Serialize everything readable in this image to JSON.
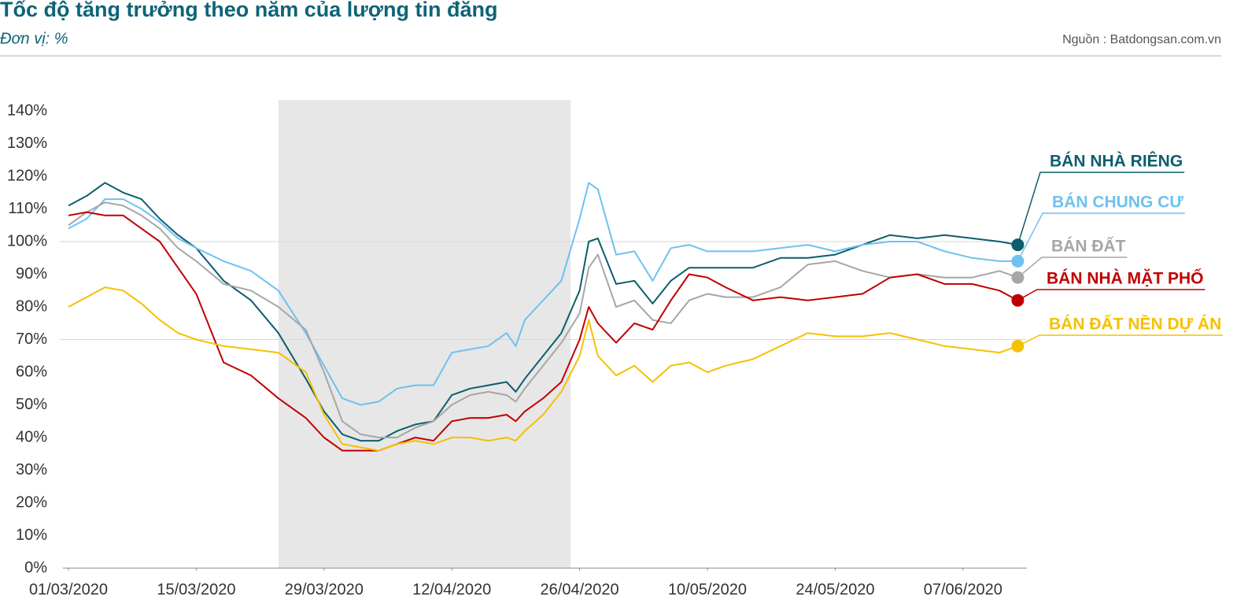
{
  "chart_data": {
    "type": "line",
    "title": "Tốc độ tăng trưởng theo năm của lượng tin đăng",
    "subtitle": "Đơn vị: %",
    "source": "Nguồn : Batdongsan.com.vn",
    "x": [
      "2020-03-01",
      "2020-03-03",
      "2020-03-05",
      "2020-03-07",
      "2020-03-09",
      "2020-03-11",
      "2020-03-13",
      "2020-03-15",
      "2020-03-18",
      "2020-03-21",
      "2020-03-24",
      "2020-03-27",
      "2020-03-29",
      "2020-03-31",
      "2020-04-02",
      "2020-04-04",
      "2020-04-06",
      "2020-04-08",
      "2020-04-10",
      "2020-04-12",
      "2020-04-14",
      "2020-04-16",
      "2020-04-18",
      "2020-04-19",
      "2020-04-20",
      "2020-04-22",
      "2020-04-24",
      "2020-04-26",
      "2020-04-27",
      "2020-04-28",
      "2020-04-30",
      "2020-05-02",
      "2020-05-04",
      "2020-05-06",
      "2020-05-08",
      "2020-05-10",
      "2020-05-12",
      "2020-05-15",
      "2020-05-18",
      "2020-05-21",
      "2020-05-24",
      "2020-05-27",
      "2020-05-30",
      "2020-06-02",
      "2020-06-05",
      "2020-06-08",
      "2020-06-11",
      "2020-06-13"
    ],
    "series": [
      {
        "name": "BÁN NHÀ RIÊNG",
        "color": "#0b5e6e",
        "values": [
          111,
          114,
          118,
          115,
          113,
          107,
          102,
          98,
          88,
          82,
          72,
          58,
          48,
          41,
          39,
          39,
          42,
          44,
          45,
          53,
          55,
          56,
          57,
          54,
          58,
          65,
          72,
          85,
          100,
          101,
          87,
          88,
          81,
          88,
          92,
          92,
          92,
          92,
          95,
          95,
          96,
          99,
          102,
          101,
          102,
          101,
          100,
          99
        ]
      },
      {
        "name": "BÁN CHUNG CƯ",
        "color": "#6ec1f0",
        "values": [
          104,
          107,
          113,
          113,
          110,
          106,
          101,
          98,
          94,
          91,
          85,
          72,
          62,
          52,
          50,
          51,
          55,
          56,
          56,
          66,
          67,
          68,
          72,
          68,
          76,
          82,
          88,
          107,
          118,
          116,
          96,
          97,
          88,
          98,
          99,
          97,
          97,
          97,
          98,
          99,
          97,
          99,
          100,
          100,
          97,
          95,
          94,
          94
        ]
      },
      {
        "name": "BÁN ĐẤT",
        "color": "#a6a6a6",
        "values": [
          105,
          109,
          112,
          111,
          108,
          104,
          98,
          94,
          87,
          85,
          80,
          73,
          60,
          45,
          41,
          40,
          40,
          43,
          45,
          50,
          53,
          54,
          53,
          51,
          55,
          62,
          69,
          78,
          92,
          96,
          80,
          82,
          76,
          75,
          82,
          84,
          83,
          83,
          86,
          93,
          94,
          91,
          89,
          90,
          89,
          89,
          91,
          89
        ]
      },
      {
        "name": "BÁN NHÀ MẶT PHỐ",
        "color": "#c00000",
        "values": [
          108,
          109,
          108,
          108,
          104,
          100,
          92,
          84,
          63,
          59,
          52,
          46,
          40,
          36,
          36,
          36,
          38,
          40,
          39,
          45,
          46,
          46,
          47,
          45,
          48,
          52,
          57,
          70,
          80,
          75,
          69,
          75,
          73,
          82,
          90,
          89,
          86,
          82,
          83,
          82,
          83,
          84,
          89,
          90,
          87,
          87,
          85,
          82
        ]
      },
      {
        "name": "BÁN ĐẤT NỀN DỰ ÁN",
        "color": "#f5c000",
        "values": [
          80,
          83,
          86,
          85,
          81,
          76,
          72,
          70,
          68,
          67,
          66,
          60,
          47,
          38,
          37,
          36,
          38,
          39,
          38,
          40,
          40,
          39,
          40,
          39,
          42,
          47,
          54,
          65,
          76,
          65,
          59,
          62,
          57,
          62,
          63,
          60,
          62,
          64,
          68,
          72,
          71,
          71,
          72,
          70,
          68,
          67,
          66,
          68
        ]
      }
    ],
    "highlight_range": [
      "2020-03-24",
      "2020-04-25"
    ],
    "xlim": [
      "2020-02-29",
      "2020-06-14"
    ],
    "xticks": [
      {
        "value": "2020-03-01",
        "label": "01/03/2020"
      },
      {
        "value": "2020-03-15",
        "label": "15/03/2020"
      },
      {
        "value": "2020-03-29",
        "label": "29/03/2020"
      },
      {
        "value": "2020-04-12",
        "label": "12/04/2020"
      },
      {
        "value": "2020-04-26",
        "label": "26/04/2020"
      },
      {
        "value": "2020-05-10",
        "label": "10/05/2020"
      },
      {
        "value": "2020-05-24",
        "label": "24/05/2020"
      },
      {
        "value": "2020-06-07",
        "label": "07/06/2020"
      }
    ],
    "ylim": [
      0,
      140
    ],
    "yticks": [
      {
        "value": 0,
        "label": "0%"
      },
      {
        "value": 10,
        "label": "10%"
      },
      {
        "value": 20,
        "label": "20%"
      },
      {
        "value": 30,
        "label": "30%"
      },
      {
        "value": 40,
        "label": "40%"
      },
      {
        "value": 50,
        "label": "50%"
      },
      {
        "value": 60,
        "label": "60%"
      },
      {
        "value": 70,
        "label": "70%"
      },
      {
        "value": 80,
        "label": "80%"
      },
      {
        "value": 90,
        "label": "90%"
      },
      {
        "value": 100,
        "label": "100%"
      },
      {
        "value": 110,
        "label": "110%"
      },
      {
        "value": 120,
        "label": "120%"
      },
      {
        "value": 130,
        "label": "130%"
      },
      {
        "value": 140,
        "label": "140%"
      }
    ],
    "grid_lines": [
      {
        "value": 70,
        "label": "70%"
      },
      {
        "value": 100,
        "label": "100%"
      }
    ]
  }
}
